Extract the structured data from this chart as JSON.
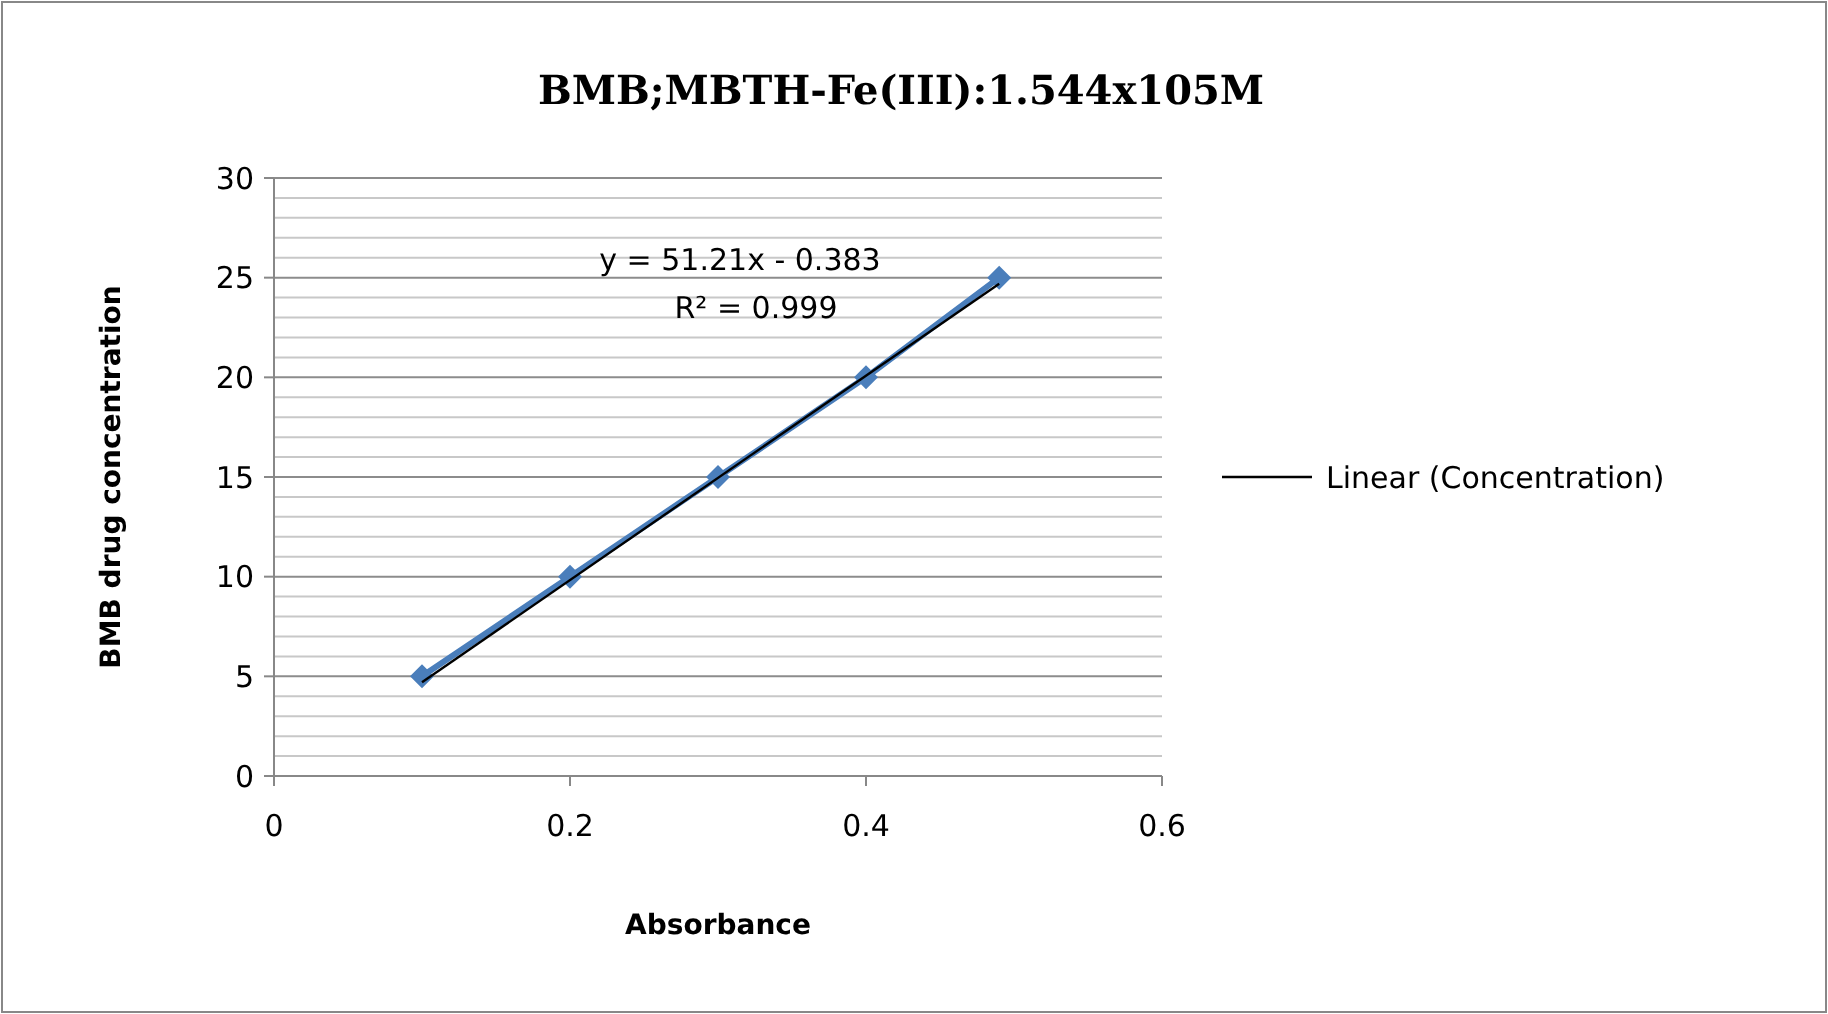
{
  "chart_data": {
    "type": "line",
    "title": "BMB;MBTH-Fe(III):1.544x105M",
    "xlabel": "Absorbance",
    "ylabel": "BMB drug concentration",
    "xlim": [
      0,
      0.6
    ],
    "xticks": [
      0,
      0.2,
      0.4,
      0.6
    ],
    "ylim": [
      0,
      30
    ],
    "yticks": [
      0,
      {
        "value": 1,
        "label": null
      },
      {
        "value": 2,
        "label": null
      },
      {
        "value": 3,
        "label": null
      },
      {
        "value": 4,
        "label": null
      },
      5,
      {
        "value": 6,
        "label": null
      },
      {
        "value": 7,
        "label": null
      },
      {
        "value": 8,
        "label": null
      },
      {
        "value": 9,
        "label": null
      },
      10,
      {
        "value": 11,
        "label": null
      },
      {
        "value": 12,
        "label": null
      },
      {
        "value": 13,
        "label": null
      },
      {
        "value": 14,
        "label": null
      },
      15,
      {
        "value": 16,
        "label": null
      },
      {
        "value": 17,
        "label": null
      },
      {
        "value": 18,
        "label": null
      },
      {
        "value": 19,
        "label": null
      },
      20,
      {
        "value": 21,
        "label": null
      },
      {
        "value": 22,
        "label": null
      },
      {
        "value": 23,
        "label": null
      },
      {
        "value": 24,
        "label": null
      },
      25,
      {
        "value": 26,
        "label": null
      },
      {
        "value": 27,
        "label": null
      },
      {
        "value": 28,
        "label": null
      },
      {
        "value": 29,
        "label": null
      },
      30
    ],
    "grid": "y",
    "legend": "right",
    "series": [
      {
        "color": "#4a7ebb",
        "marker": "diamond",
        "x": [
          0.1,
          0.2,
          0.3,
          0.4,
          0.49
        ],
        "values": [
          5,
          10,
          15,
          20,
          25
        ]
      },
      {
        "name": "Linear (Concentration)",
        "color": "#000000",
        "marker": "none",
        "x": [
          0.1,
          0.49
        ],
        "values": [
          4.7,
          24.7
        ]
      }
    ],
    "annotations": [
      "y = 51.21x - 0.383",
      "R² = 0.999"
    ]
  }
}
